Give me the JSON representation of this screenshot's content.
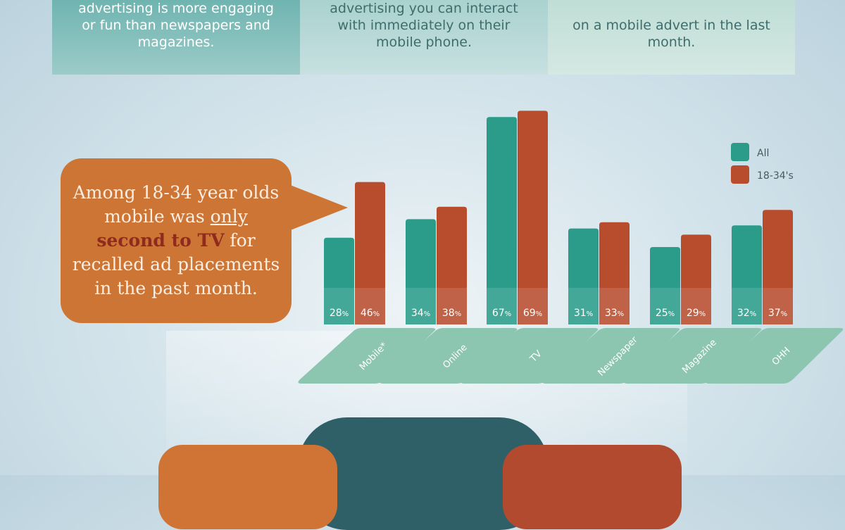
{
  "panels": [
    {
      "text": "advertising is more engaging or fun than newspapers and magazines."
    },
    {
      "text": "advertising you can interact with immediately on their mobile phone."
    },
    {
      "text": "on a mobile advert in the last month."
    }
  ],
  "callout": {
    "part1": "Among 18-34 year olds mobile was ",
    "part2": "only",
    "part3": "second to TV",
    "part4": " for recalled ad placements in the past month."
  },
  "colors": {
    "all": "#2b9c8a",
    "young": "#b84d2e",
    "platform": "#8cc6b0"
  },
  "chart_data": {
    "type": "bar",
    "categories": [
      "Mobile*",
      "Online",
      "TV",
      "Newspaper",
      "Magazine",
      "OHH"
    ],
    "series": [
      {
        "name": "All",
        "values": [
          28,
          34,
          67,
          31,
          25,
          32
        ]
      },
      {
        "name": "18-34's",
        "values": [
          46,
          38,
          69,
          33,
          29,
          37
        ]
      }
    ],
    "value_suffix": "%",
    "legend_position": "top-right",
    "grid": false
  }
}
